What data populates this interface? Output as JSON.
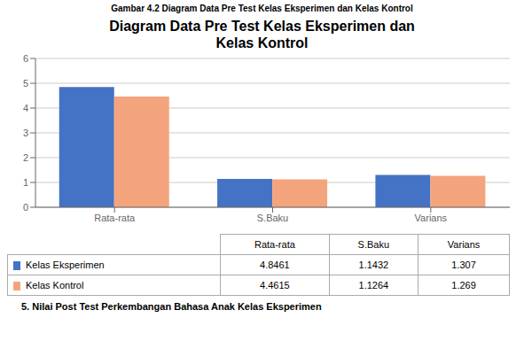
{
  "chart_data": {
    "type": "bar",
    "title": "Diagram Data Pre Test Kelas Eksperimen dan\nKelas Kontrol",
    "annotations": [
      "Gambar 4.2 Diagram Data Pre Test Kelas Eksperimen dan Kelas Kontrol",
      "5.   Nilai Post Test Perkembangan Bahasa Anak Kelas Eksperimen"
    ],
    "categories": [
      "Rata-rata",
      "S.Baku",
      "Varians"
    ],
    "series": [
      {
        "name": "Kelas Eksperimen",
        "color": "#4472C4",
        "values": [
          4.8461,
          1.1432,
          1.307
        ]
      },
      {
        "name": "Kelas Kontrol",
        "color": "#F4A47C",
        "values": [
          4.4615,
          1.1264,
          1.269
        ]
      }
    ],
    "ylim": [
      0,
      6
    ],
    "yticks": [
      0,
      1,
      2,
      3,
      4,
      5,
      6
    ],
    "grid": true
  }
}
